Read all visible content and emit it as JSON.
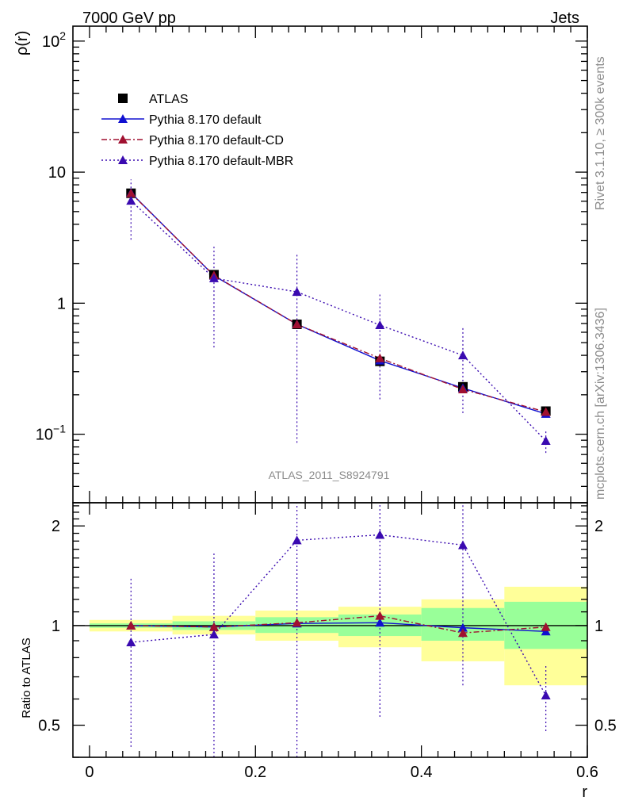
{
  "header": {
    "left": "7000 GeV pp",
    "right": "Jets",
    "side_top": "Rivet 3.1.10, ≥ 300k events",
    "side_bottom": "mcplots.cern.ch [arXiv:1306.3436]",
    "watermark": "ATLAS_2011_S8924791"
  },
  "chart_data": [
    {
      "type": "scatter",
      "title": "",
      "xlabel": "",
      "ylabel": "ρ(r)",
      "ylim": [
        0.03,
        130
      ],
      "xlim": [
        -0.02,
        0.6
      ],
      "yscale": "log",
      "yticklabels": [
        {
          "v": 0.1,
          "base": "10",
          "exp": "−1"
        },
        {
          "v": 1,
          "base": "1",
          "exp": ""
        },
        {
          "v": 10,
          "base": "10",
          "exp": ""
        },
        {
          "v": 100,
          "base": "10",
          "exp": "2"
        }
      ],
      "legend_position": "top-left",
      "x": [
        0.05,
        0.15,
        0.25,
        0.35,
        0.45,
        0.55
      ],
      "series": [
        {
          "name": "ATLAS",
          "color": "#000000",
          "marker": "square",
          "line": "none",
          "values": [
            6.9,
            1.65,
            0.69,
            0.36,
            0.23,
            0.15
          ]
        },
        {
          "name": "Pythia 8.170 default",
          "color": "#1010d0",
          "marker": "triangle",
          "line": "solid",
          "values": [
            6.95,
            1.62,
            0.69,
            0.365,
            0.225,
            0.143
          ]
        },
        {
          "name": "Pythia 8.170 default-CD",
          "color": "#a01030",
          "marker": "triangle",
          "line": "dashdot",
          "values": [
            6.9,
            1.63,
            0.69,
            0.38,
            0.22,
            0.148
          ]
        },
        {
          "name": "Pythia 8.170 default-MBR",
          "color": "#3a0ab0",
          "marker": "triangle",
          "line": "dotted",
          "values": [
            6.05,
            1.55,
            1.22,
            0.68,
            0.4,
            0.089
          ],
          "err_low": [
            3.05,
            0.46,
            0.086,
            0.185,
            0.145,
            0.072
          ],
          "err_high": [
            8.8,
            2.7,
            2.35,
            1.2,
            0.66,
            0.105
          ]
        }
      ]
    },
    {
      "type": "scatter",
      "title": "",
      "xlabel": "r",
      "ylabel": "Ratio to ATLAS",
      "xlim": [
        -0.02,
        0.6
      ],
      "ylim": [
        0.4,
        2.35
      ],
      "yscale": "log",
      "yticklabels": [
        0.5,
        1,
        2
      ],
      "xticklabels": [
        0,
        0.2,
        0.4,
        0.6
      ],
      "x": [
        0.05,
        0.15,
        0.25,
        0.35,
        0.45,
        0.55
      ],
      "bands": {
        "edges": [
          0.0,
          0.1,
          0.2,
          0.3,
          0.4,
          0.5,
          0.6
        ],
        "green": [
          [
            0.985,
            1.015
          ],
          [
            0.97,
            1.03
          ],
          [
            0.95,
            1.06
          ],
          [
            0.93,
            1.08
          ],
          [
            0.9,
            1.13
          ],
          [
            0.85,
            1.18
          ]
        ],
        "yellow": [
          [
            0.96,
            1.04
          ],
          [
            0.94,
            1.07
          ],
          [
            0.9,
            1.11
          ],
          [
            0.86,
            1.14
          ],
          [
            0.78,
            1.2
          ],
          [
            0.66,
            1.31
          ]
        ]
      },
      "series": [
        {
          "name": "Pythia 8.170 default",
          "color": "#1010d0",
          "marker": "triangle",
          "line": "solid",
          "values": [
            1.0,
            0.99,
            1.015,
            1.02,
            0.985,
            0.96
          ]
        },
        {
          "name": "Pythia 8.170 default-CD",
          "color": "#a01030",
          "marker": "triangle",
          "line": "dashdot",
          "values": [
            1.0,
            0.99,
            1.02,
            1.07,
            0.95,
            0.99
          ]
        },
        {
          "name": "Pythia 8.170 default-MBR",
          "color": "#3a0ab0",
          "marker": "triangle",
          "line": "dotted",
          "values": [
            0.89,
            0.94,
            1.81,
            1.88,
            1.75,
            0.615
          ],
          "err_low": [
            0.43,
            0.3,
            0.3,
            0.53,
            0.66,
            0.48
          ],
          "err_high": [
            1.39,
            1.67,
            2.4,
            2.4,
            2.4,
            0.76
          ]
        }
      ]
    }
  ]
}
